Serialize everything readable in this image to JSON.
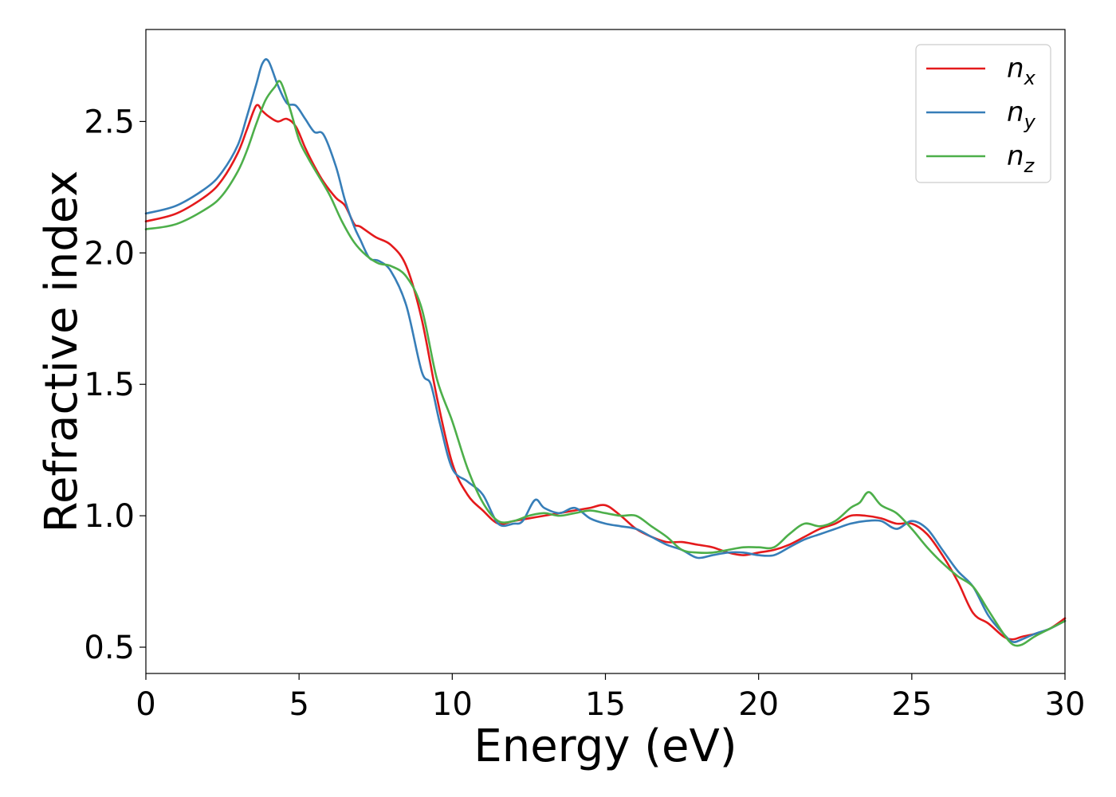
{
  "chart_data": {
    "type": "line",
    "xlabel": "Energy (eV)",
    "ylabel": "Refractive index",
    "xlim": [
      0,
      30
    ],
    "ylim": [
      0.4,
      2.85
    ],
    "xticks": [
      0,
      5,
      10,
      15,
      20,
      25,
      30
    ],
    "xtick_labels": [
      "0",
      "5",
      "10",
      "15",
      "20",
      "25",
      "30"
    ],
    "yticks": [
      0.5,
      1.0,
      1.5,
      2.0,
      2.5
    ],
    "ytick_labels": [
      "0.5",
      "1.0",
      "1.5",
      "2.0",
      "2.5"
    ],
    "grid": false,
    "legend_position": "top-right",
    "series": [
      {
        "name": "n_x",
        "label_base": "n",
        "label_sub": "x",
        "color": "#e41a1c",
        "x": [
          0,
          1,
          2,
          2.5,
          3,
          3.3,
          3.6,
          3.8,
          4.0,
          4.3,
          4.6,
          4.9,
          5.2,
          5.5,
          5.8,
          6.2,
          6.5,
          6.8,
          7.0,
          7.5,
          8.0,
          8.5,
          9.0,
          9.5,
          10.0,
          10.5,
          11.0,
          11.5,
          12.0,
          12.5,
          13.0,
          13.5,
          14.0,
          14.5,
          15.0,
          15.5,
          16.0,
          16.5,
          17.0,
          17.5,
          18.0,
          18.5,
          19.0,
          19.5,
          20.0,
          20.5,
          21.0,
          21.5,
          22.0,
          22.5,
          23.0,
          23.5,
          24.0,
          24.5,
          25.0,
          25.5,
          26.0,
          26.5,
          27.0,
          27.5,
          28.0,
          28.3,
          28.6,
          29.0,
          29.5,
          30.0
        ],
        "y": [
          2.12,
          2.15,
          2.22,
          2.28,
          2.38,
          2.47,
          2.56,
          2.54,
          2.52,
          2.5,
          2.51,
          2.48,
          2.4,
          2.33,
          2.27,
          2.21,
          2.18,
          2.11,
          2.1,
          2.06,
          2.03,
          1.95,
          1.75,
          1.45,
          1.2,
          1.08,
          1.02,
          0.97,
          0.98,
          0.99,
          1.0,
          1.01,
          1.02,
          1.03,
          1.04,
          1.0,
          0.95,
          0.92,
          0.9,
          0.9,
          0.89,
          0.88,
          0.86,
          0.85,
          0.86,
          0.87,
          0.89,
          0.92,
          0.95,
          0.97,
          1.0,
          1.0,
          0.99,
          0.97,
          0.97,
          0.93,
          0.85,
          0.75,
          0.63,
          0.59,
          0.54,
          0.53,
          0.54,
          0.55,
          0.57,
          0.61
        ]
      },
      {
        "name": "n_y",
        "label_base": "n",
        "label_sub": "y",
        "color": "#377eb8",
        "x": [
          0,
          1,
          2,
          2.5,
          3,
          3.3,
          3.6,
          3.8,
          4.0,
          4.3,
          4.6,
          4.9,
          5.2,
          5.5,
          5.8,
          6.2,
          6.5,
          6.8,
          7.0,
          7.3,
          7.6,
          8.0,
          8.5,
          9.0,
          9.3,
          9.6,
          10.0,
          10.5,
          11.0,
          11.5,
          12.0,
          12.3,
          12.7,
          13.0,
          13.5,
          14.0,
          14.5,
          15.0,
          15.5,
          16.0,
          16.5,
          17.0,
          17.5,
          18.0,
          18.5,
          19.0,
          19.5,
          20.0,
          20.5,
          21.0,
          21.5,
          22.0,
          22.5,
          23.0,
          23.5,
          24.0,
          24.5,
          25.0,
          25.5,
          26.0,
          26.5,
          27.0,
          27.5,
          28.0,
          28.3,
          28.6,
          29.0,
          29.5,
          30.0
        ],
        "y": [
          2.15,
          2.18,
          2.25,
          2.31,
          2.41,
          2.52,
          2.64,
          2.72,
          2.73,
          2.64,
          2.57,
          2.56,
          2.51,
          2.46,
          2.45,
          2.33,
          2.2,
          2.1,
          2.05,
          1.98,
          1.97,
          1.93,
          1.8,
          1.55,
          1.5,
          1.35,
          1.18,
          1.13,
          1.08,
          0.97,
          0.97,
          0.98,
          1.06,
          1.03,
          1.01,
          1.03,
          0.99,
          0.97,
          0.96,
          0.95,
          0.92,
          0.89,
          0.87,
          0.84,
          0.85,
          0.86,
          0.86,
          0.85,
          0.85,
          0.88,
          0.91,
          0.93,
          0.95,
          0.97,
          0.98,
          0.98,
          0.95,
          0.98,
          0.95,
          0.87,
          0.79,
          0.73,
          0.62,
          0.55,
          0.52,
          0.53,
          0.55,
          0.57,
          0.6
        ]
      },
      {
        "name": "n_z",
        "label_base": "n",
        "label_sub": "z",
        "color": "#4daf4a",
        "x": [
          0,
          1,
          2,
          2.5,
          3,
          3.3,
          3.6,
          3.9,
          4.2,
          4.4,
          4.7,
          5.0,
          5.3,
          5.6,
          6.0,
          6.4,
          6.8,
          7.2,
          7.6,
          8.0,
          8.5,
          9.0,
          9.5,
          10.0,
          10.5,
          11.0,
          11.5,
          12.0,
          12.5,
          13.0,
          13.5,
          14.0,
          14.5,
          15.0,
          15.5,
          16.0,
          16.5,
          17.0,
          17.5,
          18.0,
          18.5,
          19.0,
          19.5,
          20.0,
          20.5,
          21.0,
          21.5,
          22.0,
          22.5,
          23.0,
          23.3,
          23.6,
          24.0,
          24.5,
          25.0,
          25.5,
          26.0,
          26.5,
          27.0,
          27.5,
          28.0,
          28.3,
          28.6,
          29.0,
          29.5,
          30.0
        ],
        "y": [
          2.09,
          2.11,
          2.17,
          2.22,
          2.31,
          2.39,
          2.49,
          2.58,
          2.63,
          2.65,
          2.55,
          2.43,
          2.36,
          2.3,
          2.22,
          2.12,
          2.04,
          1.99,
          1.96,
          1.95,
          1.91,
          1.79,
          1.52,
          1.36,
          1.18,
          1.05,
          0.98,
          0.98,
          1.0,
          1.01,
          1.0,
          1.01,
          1.02,
          1.01,
          1.0,
          1.0,
          0.96,
          0.92,
          0.87,
          0.86,
          0.86,
          0.87,
          0.88,
          0.88,
          0.88,
          0.93,
          0.97,
          0.96,
          0.98,
          1.03,
          1.05,
          1.09,
          1.04,
          1.01,
          0.95,
          0.88,
          0.82,
          0.77,
          0.73,
          0.64,
          0.55,
          0.51,
          0.51,
          0.54,
          0.57,
          0.6
        ]
      }
    ]
  }
}
